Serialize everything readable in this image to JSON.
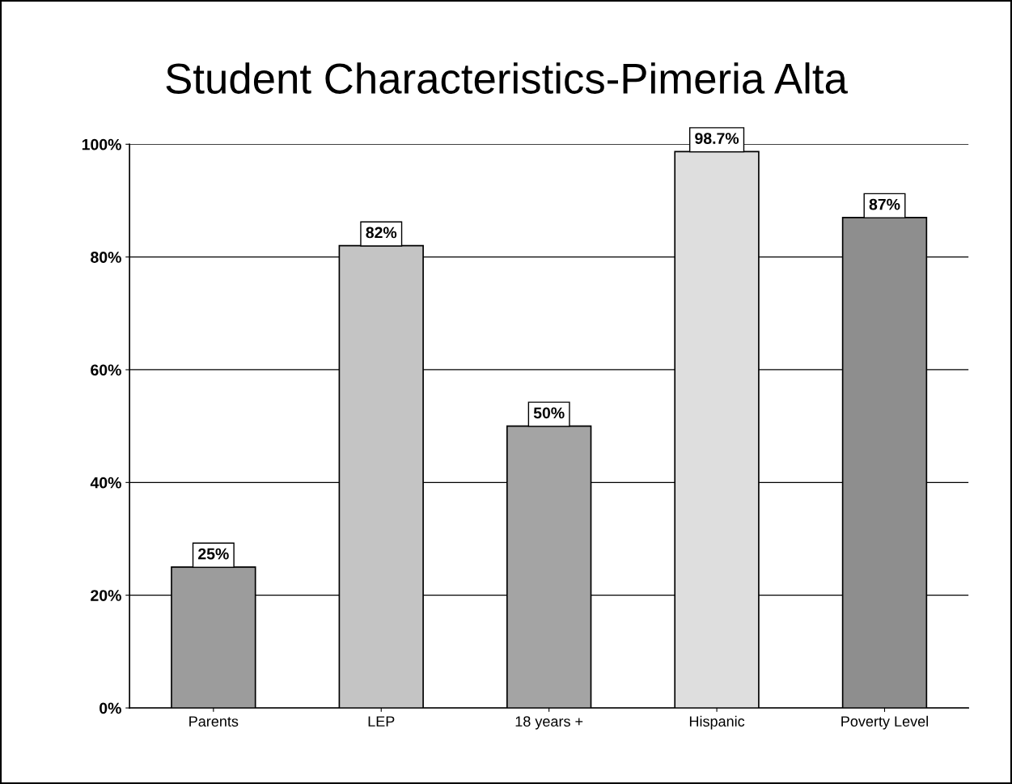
{
  "chart_data": {
    "type": "bar",
    "title": "Student Characteristics-Pimeria Alta",
    "categories": [
      "Parents",
      "LEP",
      "18 years +",
      "Hispanic",
      "Poverty Level"
    ],
    "values": [
      25,
      82,
      50,
      98.7,
      87
    ],
    "value_labels": [
      "25%",
      "82%",
      "50%",
      "98.7%",
      "87%"
    ],
    "colors": [
      "#9c9c9c",
      "#c4c4c4",
      "#a4a4a4",
      "#dedede",
      "#8e8e8e"
    ],
    "ylim": [
      0,
      100
    ],
    "yticks": [
      {
        "value": 0,
        "label": "0%"
      },
      {
        "value": 20,
        "label": "20%"
      },
      {
        "value": 40,
        "label": "40%"
      },
      {
        "value": 60,
        "label": "60%"
      },
      {
        "value": 80,
        "label": "80%"
      },
      {
        "value": 100,
        "label": "100%"
      }
    ],
    "grid": "y"
  }
}
